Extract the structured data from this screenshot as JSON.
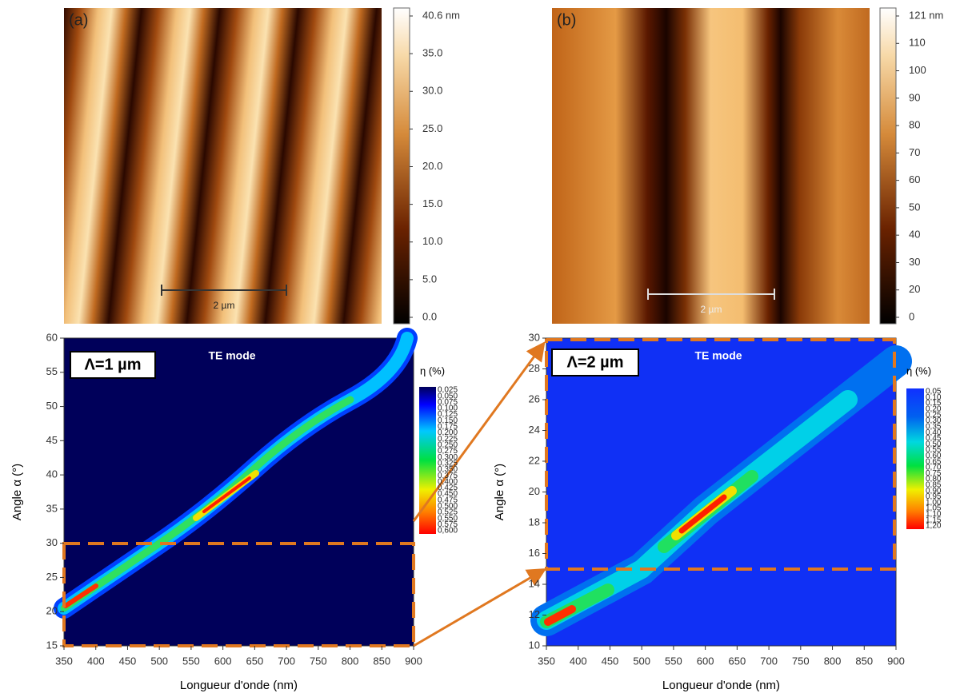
{
  "panels": [
    {
      "label": "(a)",
      "scale_bar": "2 µm",
      "colorbar_ticks": [
        "40.6 nm",
        "35.0",
        "30.0",
        "25.0",
        "20.0",
        "15.0",
        "10.0",
        "5.0",
        "0.0"
      ]
    },
    {
      "label": "(b)",
      "scale_bar": "2 µm",
      "colorbar_ticks": [
        "121 nm",
        "110",
        "100",
        "90",
        "80",
        "70",
        "60",
        "50",
        "40",
        "30",
        "20",
        "0"
      ]
    }
  ],
  "maps": [
    {
      "period": "Λ=1 µm",
      "mode": "TE mode",
      "x_label": "Longueur d'onde (nm)",
      "y_label": "Angle α (°)",
      "xticks": [
        350,
        400,
        450,
        500,
        550,
        600,
        650,
        700,
        750,
        800,
        850,
        900
      ],
      "yticks": [
        15,
        20,
        25,
        30,
        35,
        40,
        45,
        50,
        55,
        60
      ],
      "colorbar_title": "η (%)",
      "colorbar_ticks": [
        "0,025",
        "0,050",
        "0,075",
        "0,100",
        "0,125",
        "0,150",
        "0,175",
        "0,200",
        "0,225",
        "0,250",
        "0,275",
        "0,300",
        "0,325",
        "0,350",
        "0,375",
        "0,400",
        "0,425",
        "0,450",
        "0,475",
        "0,500",
        "0,525",
        "0,550",
        "0,575",
        "0,600"
      ]
    },
    {
      "period": "Λ=2 µm",
      "mode": "TE mode",
      "x_label": "Longueur d'onde (nm)",
      "y_label": "Angle α (°)",
      "xticks": [
        350,
        400,
        450,
        500,
        550,
        600,
        650,
        700,
        750,
        800,
        850,
        900
      ],
      "yticks": [
        10,
        12,
        14,
        16,
        18,
        20,
        22,
        24,
        26,
        28,
        30
      ],
      "colorbar_title": "η (%)",
      "colorbar_ticks": [
        "0,05",
        "0,10",
        "0,15",
        "0,20",
        "0,25",
        "0,30",
        "0,35",
        "0,40",
        "0,45",
        "0,50",
        "0,55",
        "0,60",
        "0,65",
        "0,70",
        "0,75",
        "0,80",
        "0,85",
        "0,90",
        "0,95",
        "1,00",
        "1,05",
        "1,10",
        "1,15",
        "1,20"
      ]
    }
  ]
}
